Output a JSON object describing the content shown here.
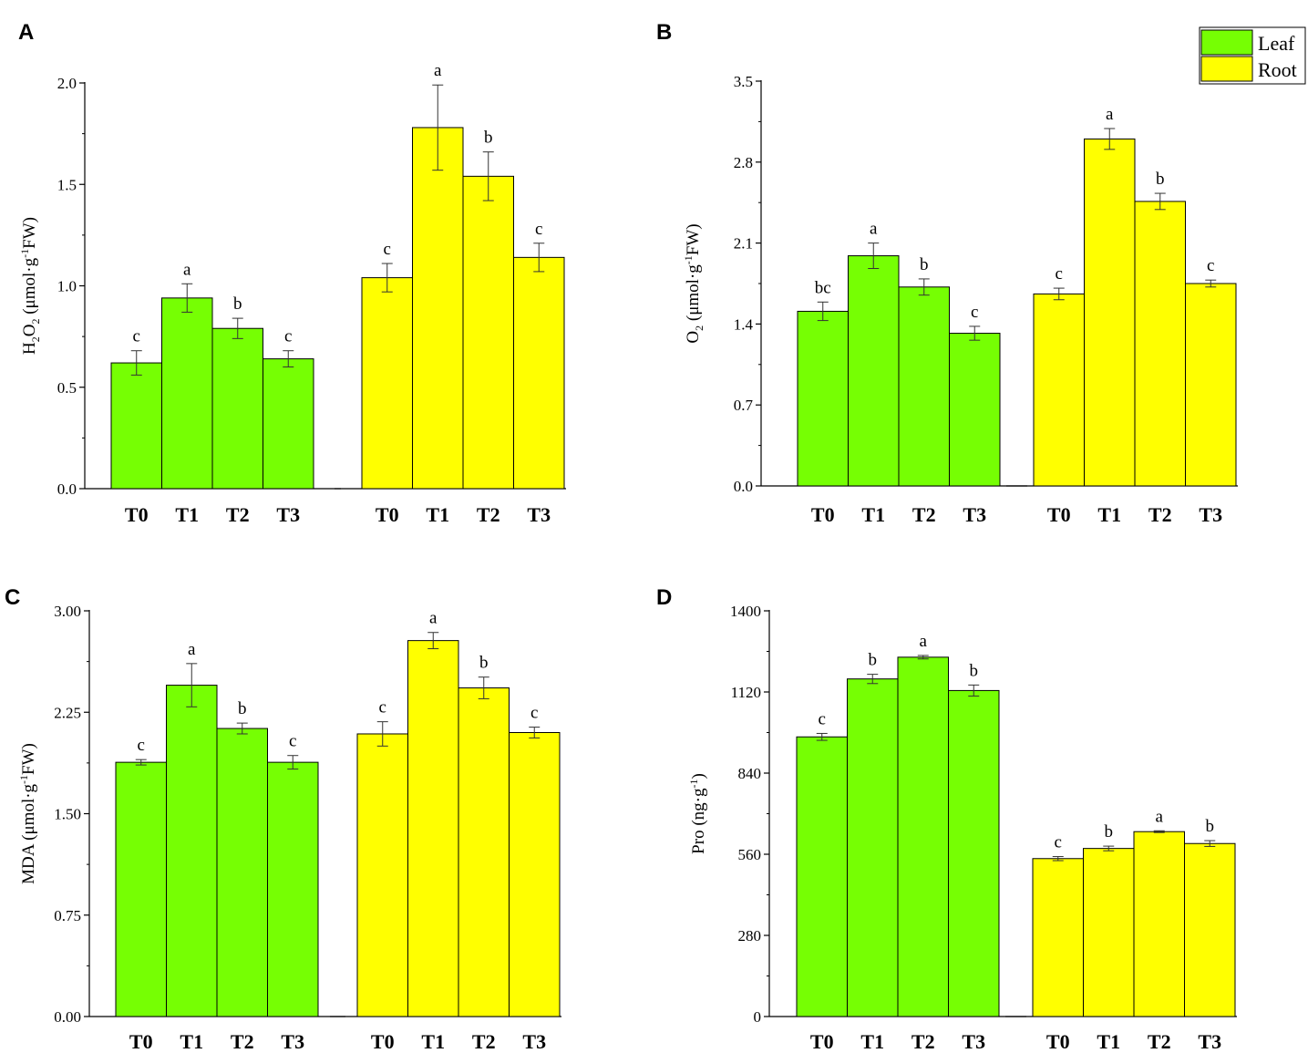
{
  "colors": {
    "leaf": "#76ff03",
    "root": "#ffff00",
    "axis": "#000000"
  },
  "legend": {
    "items": [
      {
        "label": "Leaf",
        "color": "#76ff03"
      },
      {
        "label": "Root",
        "color": "#ffff00"
      }
    ]
  },
  "chart_data": [
    {
      "type": "bar",
      "panel_label": "A",
      "ylabel_parts": {
        "pre": "H",
        "sub1": "2",
        "mid": "O",
        "sub2": "2",
        "post": " (μmol·g",
        "sup": "-1",
        "end": "FW)"
      },
      "ylim": [
        0,
        2.0
      ],
      "yticks": [
        "0.0",
        "0.5",
        "1.0",
        "1.5",
        "2.0"
      ],
      "categories": [
        "T0",
        "T1",
        "T2",
        "T3"
      ],
      "series": [
        {
          "name": "Leaf",
          "values": [
            0.62,
            0.94,
            0.79,
            0.64
          ],
          "errors": [
            0.06,
            0.07,
            0.05,
            0.04
          ],
          "letters": [
            "c",
            "a",
            "b",
            "c"
          ]
        },
        {
          "name": "Root",
          "values": [
            1.04,
            1.78,
            1.54,
            1.14
          ],
          "errors": [
            0.07,
            0.21,
            0.12,
            0.07
          ],
          "letters": [
            "c",
            "a",
            "b",
            "c"
          ]
        }
      ]
    },
    {
      "type": "bar",
      "panel_label": "B",
      "ylabel_parts": {
        "pre": "O",
        "sub1": "2",
        "mid": "",
        "sub2": "",
        "post": " (μmol·g",
        "sup": "-1",
        "end": "FW)"
      },
      "ylim": [
        0,
        3.5
      ],
      "yticks": [
        "0.0",
        "0.7",
        "1.4",
        "2.1",
        "2.8",
        "3.5"
      ],
      "categories": [
        "T0",
        "T1",
        "T2",
        "T3"
      ],
      "series": [
        {
          "name": "Leaf",
          "values": [
            1.51,
            1.99,
            1.72,
            1.32
          ],
          "errors": [
            0.08,
            0.11,
            0.07,
            0.06
          ],
          "letters": [
            "bc",
            "a",
            "b",
            "c"
          ]
        },
        {
          "name": "Root",
          "values": [
            1.66,
            3.0,
            2.46,
            1.75
          ],
          "errors": [
            0.05,
            0.09,
            0.07,
            0.03
          ],
          "letters": [
            "c",
            "a",
            "b",
            "c"
          ]
        }
      ]
    },
    {
      "type": "bar",
      "panel_label": "C",
      "ylabel_parts": {
        "pre": "MDA (μmol·g",
        "sub1": "",
        "mid": "",
        "sub2": "",
        "post": "",
        "sup": "-1",
        "end": "FW)"
      },
      "ylim": [
        0,
        3.0
      ],
      "yticks": [
        "0.00",
        "0.75",
        "1.50",
        "2.25",
        "3.00"
      ],
      "categories": [
        "T0",
        "T1",
        "T2",
        "T3"
      ],
      "series": [
        {
          "name": "Leaf",
          "values": [
            1.88,
            2.45,
            2.13,
            1.88
          ],
          "errors": [
            0.02,
            0.16,
            0.04,
            0.05
          ],
          "letters": [
            "c",
            "a",
            "b",
            "c"
          ]
        },
        {
          "name": "Root",
          "values": [
            2.09,
            2.78,
            2.43,
            2.1
          ],
          "errors": [
            0.09,
            0.06,
            0.08,
            0.04
          ],
          "letters": [
            "c",
            "a",
            "b",
            "c"
          ]
        }
      ]
    },
    {
      "type": "bar",
      "panel_label": "D",
      "ylabel_parts": {
        "pre": "Pro (ng·g",
        "sub1": "",
        "mid": "",
        "sub2": "",
        "post": "",
        "sup": "-1",
        "end": ")"
      },
      "ylim": [
        0,
        1400
      ],
      "yticks": [
        "0",
        "280",
        "560",
        "840",
        "1120",
        "1400"
      ],
      "categories": [
        "T0",
        "T1",
        "T2",
        "T3"
      ],
      "series": [
        {
          "name": "Leaf",
          "values": [
            965,
            1165,
            1240,
            1125
          ],
          "errors": [
            12,
            16,
            6,
            19
          ],
          "letters": [
            "c",
            "b",
            "a",
            "b"
          ]
        },
        {
          "name": "Root",
          "values": [
            545,
            580,
            638,
            597
          ],
          "errors": [
            7,
            8,
            3,
            10
          ],
          "letters": [
            "c",
            "b",
            "a",
            "b"
          ]
        }
      ]
    }
  ]
}
